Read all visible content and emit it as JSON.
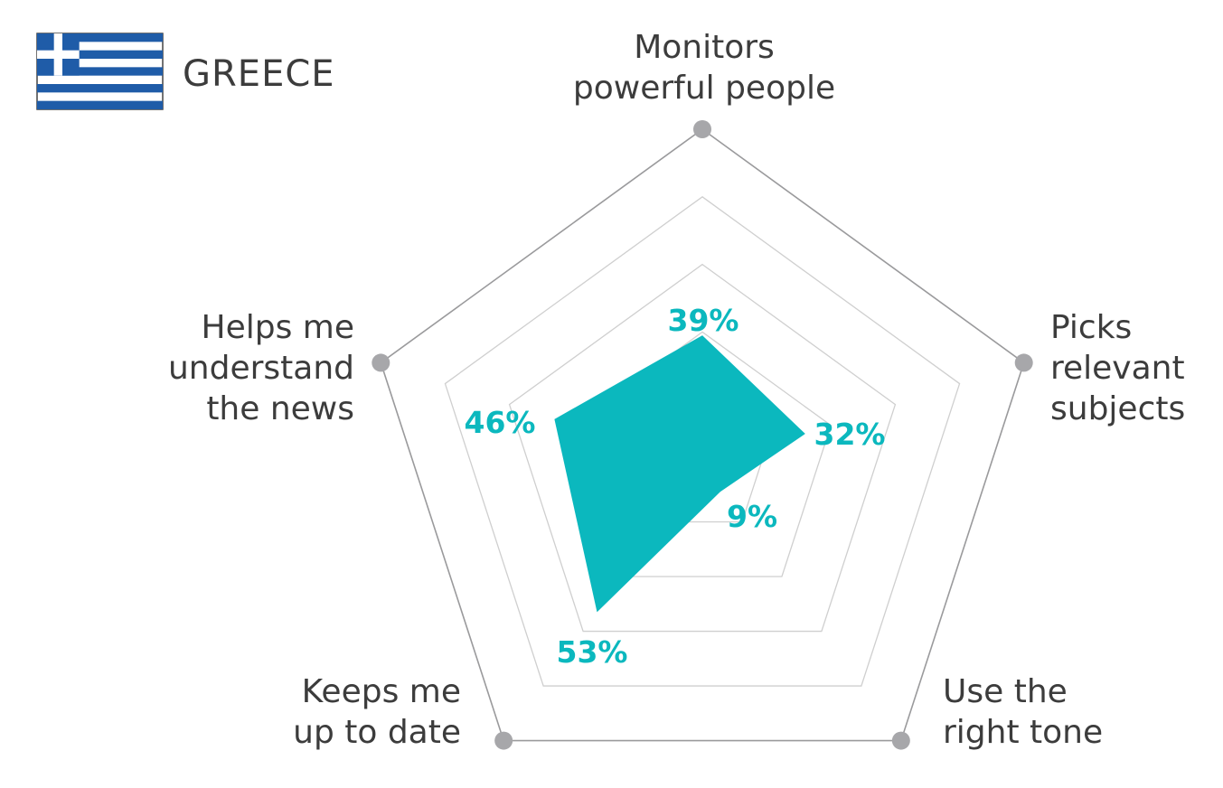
{
  "header": {
    "country": "GREECE",
    "flag_icon": "greece-flag-icon"
  },
  "colors": {
    "fill": "#0bb8be",
    "grid": "#cfcfcf",
    "outer": "#9a9a9c",
    "marker": "#a7a7aa",
    "text": "#3c3c3c",
    "flag_blue": "#1f5ca8"
  },
  "chart_data": {
    "type": "radar",
    "title": "GREECE",
    "axes": [
      {
        "label": [
          "Monitors",
          "powerful people"
        ],
        "value": 39,
        "value_label": "39%"
      },
      {
        "label": [
          "Picks",
          "relevant",
          "subjects"
        ],
        "value": 32,
        "value_label": "32%"
      },
      {
        "label": [
          "Use the",
          "right tone"
        ],
        "value": 9,
        "value_label": "9%"
      },
      {
        "label": [
          "Keeps me",
          "up to date"
        ],
        "value": 53,
        "value_label": "53%"
      },
      {
        "label": [
          "Helps me",
          "understand",
          "the news"
        ],
        "value": 46,
        "value_label": "46%"
      }
    ],
    "range": [
      0,
      100
    ],
    "grid_steps": [
      20,
      40,
      60,
      80,
      100
    ]
  }
}
